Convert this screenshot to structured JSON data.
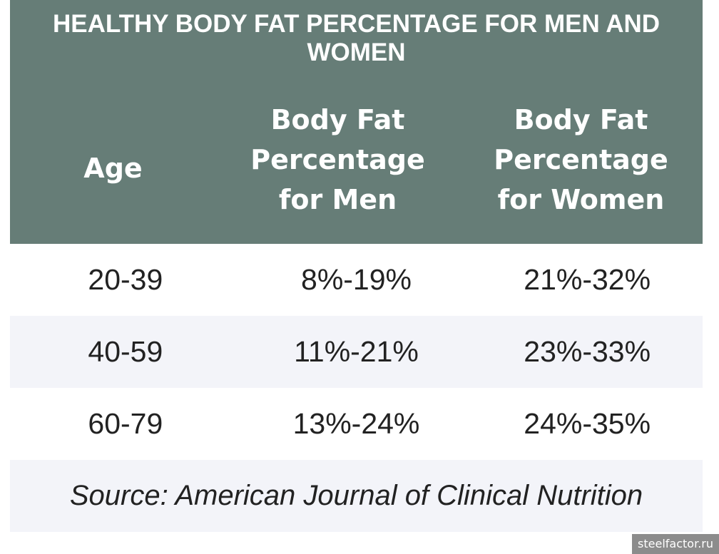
{
  "table": {
    "title": "HEALTHY BODY FAT PERCENTAGE FOR MEN AND WOMEN",
    "headers": [
      "Age",
      "Body Fat Percentage for Men",
      "Body Fat Percentage for Women"
    ],
    "rows": [
      [
        "20-39",
        "8%-19%",
        "21%-32%"
      ],
      [
        "40-59",
        "11%-21%",
        "23%-33%"
      ],
      [
        "60-79",
        "13%-24%",
        "24%-35%"
      ]
    ],
    "source": "Source: American Journal of Clinical Nutrition"
  },
  "watermark": "steelfactor.ru",
  "colors": {
    "header_bg": "#667d77",
    "alt_row_bg": "#f3f4f9"
  }
}
